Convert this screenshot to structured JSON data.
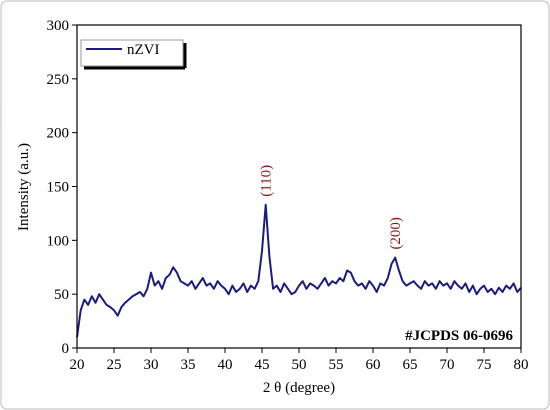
{
  "chart_data": {
    "type": "line",
    "xlabel": "2 θ (degree)",
    "ylabel": "Intensity (a.u.)",
    "x": [
      20,
      20.5,
      21,
      21.5,
      22,
      22.5,
      23,
      23.5,
      24,
      24.5,
      25,
      25.5,
      26,
      26.5,
      27,
      27.5,
      28,
      28.5,
      29,
      29.5,
      30,
      30.5,
      31,
      31.5,
      32,
      32.5,
      33,
      33.5,
      34,
      34.5,
      35,
      35.5,
      36,
      36.5,
      37,
      37.5,
      38,
      38.5,
      39,
      39.5,
      40,
      40.5,
      41,
      41.5,
      42,
      42.5,
      43,
      43.5,
      44,
      44.5,
      45,
      45.5,
      46,
      46.5,
      47,
      47.5,
      48,
      48.5,
      49,
      49.5,
      50,
      50.5,
      51,
      51.5,
      52,
      52.5,
      53,
      53.5,
      54,
      54.5,
      55,
      55.5,
      56,
      56.5,
      57,
      57.5,
      58,
      58.5,
      59,
      59.5,
      60,
      60.5,
      61,
      61.5,
      62,
      62.5,
      63,
      63.5,
      64,
      64.5,
      65,
      65.5,
      66,
      66.5,
      67,
      67.5,
      68,
      68.5,
      69,
      69.5,
      70,
      70.5,
      71,
      71.5,
      72,
      72.5,
      73,
      73.5,
      74,
      74.5,
      75,
      75.5,
      76,
      76.5,
      77,
      77.5,
      78,
      78.5,
      79,
      79.5,
      80
    ],
    "series": [
      {
        "name": "nZVI",
        "color": "#1c1c80",
        "values": [
          10,
          35,
          45,
          40,
          48,
          42,
          50,
          45,
          40,
          38,
          35,
          30,
          38,
          42,
          45,
          48,
          50,
          52,
          48,
          55,
          70,
          58,
          62,
          55,
          65,
          68,
          75,
          70,
          62,
          60,
          58,
          62,
          55,
          60,
          65,
          58,
          60,
          55,
          62,
          58,
          55,
          50,
          58,
          52,
          55,
          60,
          52,
          58,
          55,
          62,
          90,
          133,
          85,
          55,
          58,
          52,
          60,
          55,
          50,
          52,
          58,
          62,
          55,
          60,
          58,
          55,
          60,
          65,
          58,
          62,
          60,
          65,
          62,
          72,
          70,
          62,
          58,
          60,
          55,
          62,
          58,
          52,
          60,
          58,
          65,
          78,
          84,
          72,
          62,
          58,
          60,
          62,
          58,
          55,
          62,
          58,
          60,
          55,
          62,
          58,
          60,
          55,
          62,
          58,
          55,
          60,
          52,
          58,
          50,
          55,
          58,
          52,
          55,
          50,
          56,
          52,
          58,
          55,
          60,
          52,
          56
        ]
      }
    ],
    "annotations": [
      "(110)",
      "(200)",
      "#JCPDS 06-0696"
    ],
    "xlim": [
      20,
      80
    ],
    "xticks": [
      20,
      25,
      30,
      35,
      40,
      45,
      50,
      55,
      60,
      65,
      70,
      75,
      80
    ],
    "ylim": [
      0,
      300
    ],
    "yticks": [
      0,
      50,
      100,
      150,
      200,
      250,
      300
    ],
    "legend": "upper left"
  }
}
